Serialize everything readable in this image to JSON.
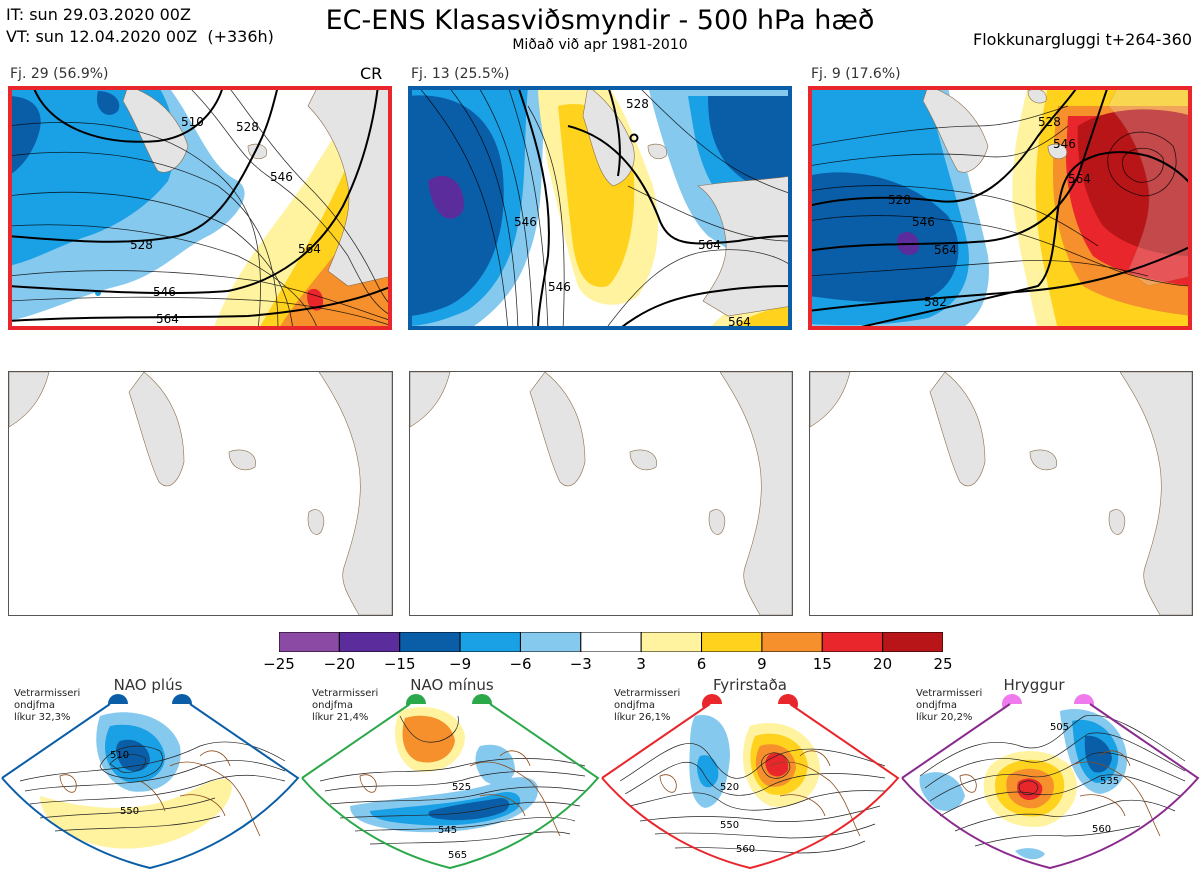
{
  "header": {
    "it": "IT: sun 29.03.2020 00Z",
    "vt": "VT: sun 12.04.2020 00Z  (+336h)",
    "title": "EC-ENS Klasasviðsmyndir - 500 hPa hæð",
    "subtitle": "Miðað við apr 1981-2010",
    "window": "Flokkunargluggi t+264-360"
  },
  "clusters": [
    {
      "label": "Fj. 29 (56.9%)",
      "regime_code": "CR",
      "frame_color": "#e8262b",
      "contours": [
        "510",
        "528",
        "546",
        "528",
        "546",
        "564",
        "564"
      ]
    },
    {
      "label": "Fj. 13 (25.5%)",
      "regime_code": "",
      "frame_color": "#0a5ea8",
      "contours": [
        "528",
        "546",
        "546",
        "564",
        "564"
      ]
    },
    {
      "label": "Fj. 9 (17.6%)",
      "regime_code": "",
      "frame_color": "#e8262b",
      "contours": [
        "528",
        "546",
        "564",
        "528",
        "546",
        "564",
        "582"
      ]
    }
  ],
  "colorbar": {
    "colors": [
      "#8b4aa3",
      "#5b2c9c",
      "#0a5ea8",
      "#1aa0e4",
      "#86c9ef",
      "#ffffff",
      "#fff3a0",
      "#ffd21e",
      "#f5902c",
      "#e8262b",
      "#b81518"
    ],
    "ticks": [
      "−25",
      "−20",
      "−15",
      "−9",
      "−6",
      "−3",
      "3",
      "6",
      "9",
      "15",
      "20",
      "25"
    ]
  },
  "regimes": [
    {
      "name": "NAO plús",
      "note": "Vetrarmisseri\nondjfma\nlíkur 32,3%",
      "border": "#0a5ea8",
      "dot": "#0a5ea8",
      "contours": [
        "510",
        "550"
      ]
    },
    {
      "name": "NAO mínus",
      "note": "Vetrarmisseri\nondjfma\nlíkur 21,4%",
      "border": "#2aa84a",
      "dot": "#2aa84a",
      "contours": [
        "525",
        "545",
        "565"
      ]
    },
    {
      "name": "Fyrirstaða",
      "note": "Vetrarmisseri\nondjfma\nlíkur 26,1%",
      "border": "#e8262b",
      "dot": "#e8262b",
      "contours": [
        "520",
        "550",
        "560"
      ]
    },
    {
      "name": "Hryggur",
      "note": "Vetrarmisseri\nondjfma\nlíkur 20,2%",
      "border": "#8b2a8e",
      "dot": "#ee7aee",
      "contours": [
        "505",
        "535",
        "560"
      ]
    }
  ]
}
